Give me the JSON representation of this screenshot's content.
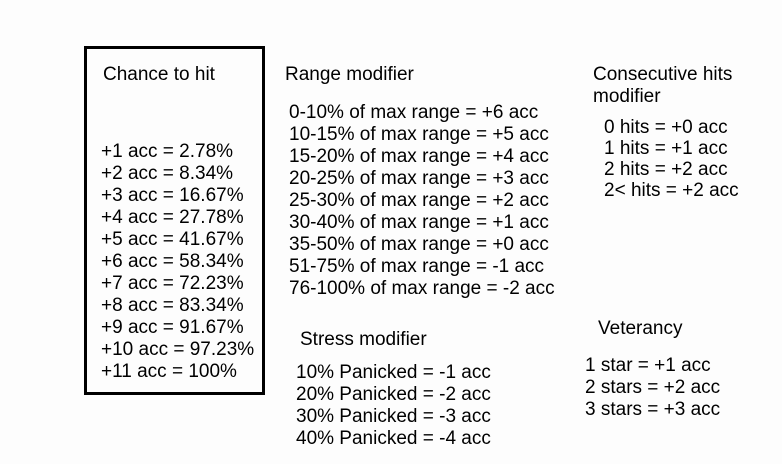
{
  "page": {
    "background_color": "#fdfdfd",
    "text_color": "#000000",
    "border_color": "#000000"
  },
  "chance_to_hit": {
    "title": "Chance to hit",
    "rows": [
      "+1 acc = 2.78%",
      "+2 acc = 8.34%",
      "+3 acc = 16.67%",
      "+4 acc = 27.78%",
      "+5 acc = 41.67%",
      "+6 acc = 58.34%",
      "+7 acc = 72.23%",
      "+8 acc = 83.34%",
      "+9 acc = 91.67%",
      "+10 acc = 97.23%",
      "+11 acc = 100%"
    ]
  },
  "range_modifier": {
    "title": "Range modifier",
    "rows": [
      "0-10% of max range = +6 acc",
      "10-15% of max range = +5 acc",
      "15-20% of max range = +4 acc",
      "20-25% of max range = +3 acc",
      "25-30% of max range = +2 acc",
      "30-40% of max range = +1 acc",
      "35-50% of max range = +0 acc",
      "51-75% of max range = -1 acc",
      "76-100% of max range = -2 acc"
    ]
  },
  "consecutive_hits_modifier": {
    "title": "Consecutive hits modifier",
    "rows": [
      "0 hits = +0 acc",
      "1 hits = +1 acc",
      "2 hits = +2 acc",
      "2< hits = +2 acc"
    ]
  },
  "stress_modifier": {
    "title": "Stress modifier",
    "rows": [
      "10% Panicked = -1 acc",
      "20% Panicked = -2 acc",
      "30% Panicked = -3 acc",
      "40% Panicked = -4 acc"
    ]
  },
  "veterancy": {
    "title": "Veterancy",
    "rows": [
      "1 star = +1 acc",
      "2 stars = +2 acc",
      "3 stars = +3 acc"
    ]
  }
}
